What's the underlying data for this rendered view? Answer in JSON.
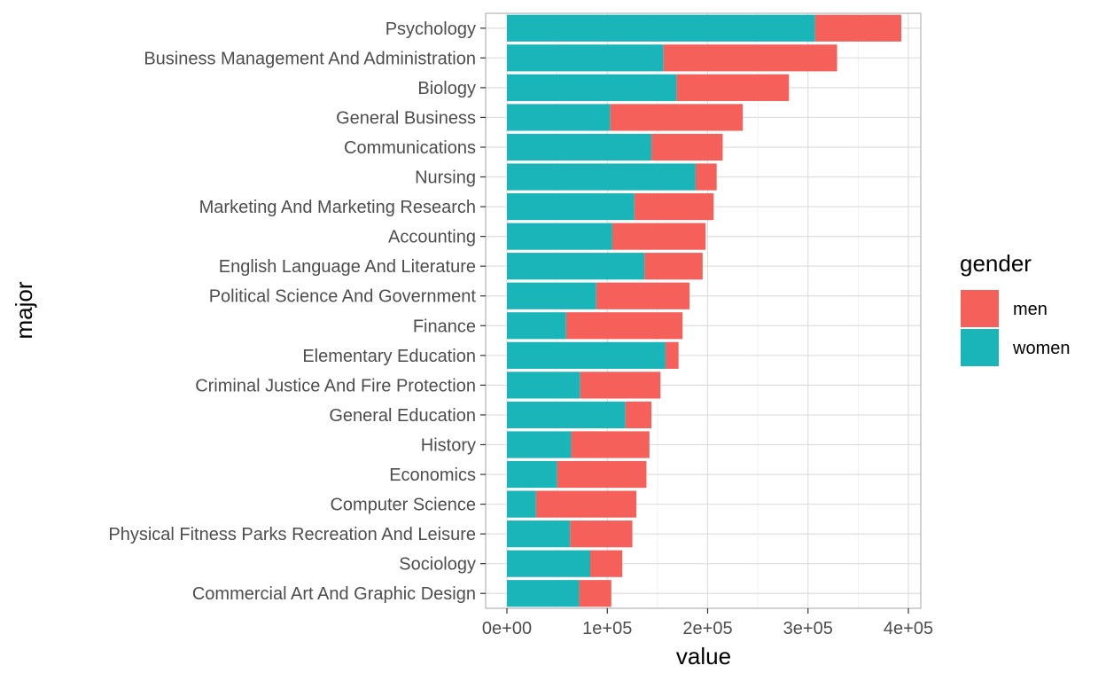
{
  "chart_data": {
    "type": "bar",
    "orientation": "horizontal",
    "stacked": true,
    "xlabel": "value",
    "ylabel": "major",
    "xlim": [
      0,
      410000
    ],
    "x_ticks": [
      0,
      100000,
      200000,
      300000,
      400000
    ],
    "x_tick_labels": [
      "0e+00",
      "1e+05",
      "2e+05",
      "3e+05",
      "4e+05"
    ],
    "grid": true,
    "legend": {
      "title": "gender",
      "position": "right",
      "entries": [
        "men",
        "women"
      ]
    },
    "categories": [
      "Psychology",
      "Business Management And Administration",
      "Biology",
      "General Business",
      "Communications",
      "Nursing",
      "Marketing And Marketing Research",
      "Accounting",
      "English Language And Literature",
      "Political Science And Government",
      "Finance",
      "Elementary Education",
      "Criminal Justice And Fire Protection",
      "General Education",
      "History",
      "Economics",
      "Computer Science",
      "Physical Fitness Parks Recreation And Leisure",
      "Sociology",
      "Commercial Art And Graphic Design"
    ],
    "series": [
      {
        "name": "women",
        "color": "#1AB5B8",
        "values": [
          307000,
          156000,
          169000,
          103000,
          144000,
          188000,
          127000,
          105000,
          137000,
          89000,
          59000,
          158000,
          73000,
          118000,
          64000,
          50000,
          29000,
          63000,
          83000,
          72000
        ]
      },
      {
        "name": "men",
        "color": "#F5605B",
        "values": [
          86000,
          173000,
          112000,
          132000,
          71000,
          21000,
          79000,
          93000,
          58000,
          93000,
          116000,
          13000,
          80000,
          26000,
          78000,
          89000,
          100000,
          62000,
          32000,
          32000
        ]
      }
    ]
  }
}
